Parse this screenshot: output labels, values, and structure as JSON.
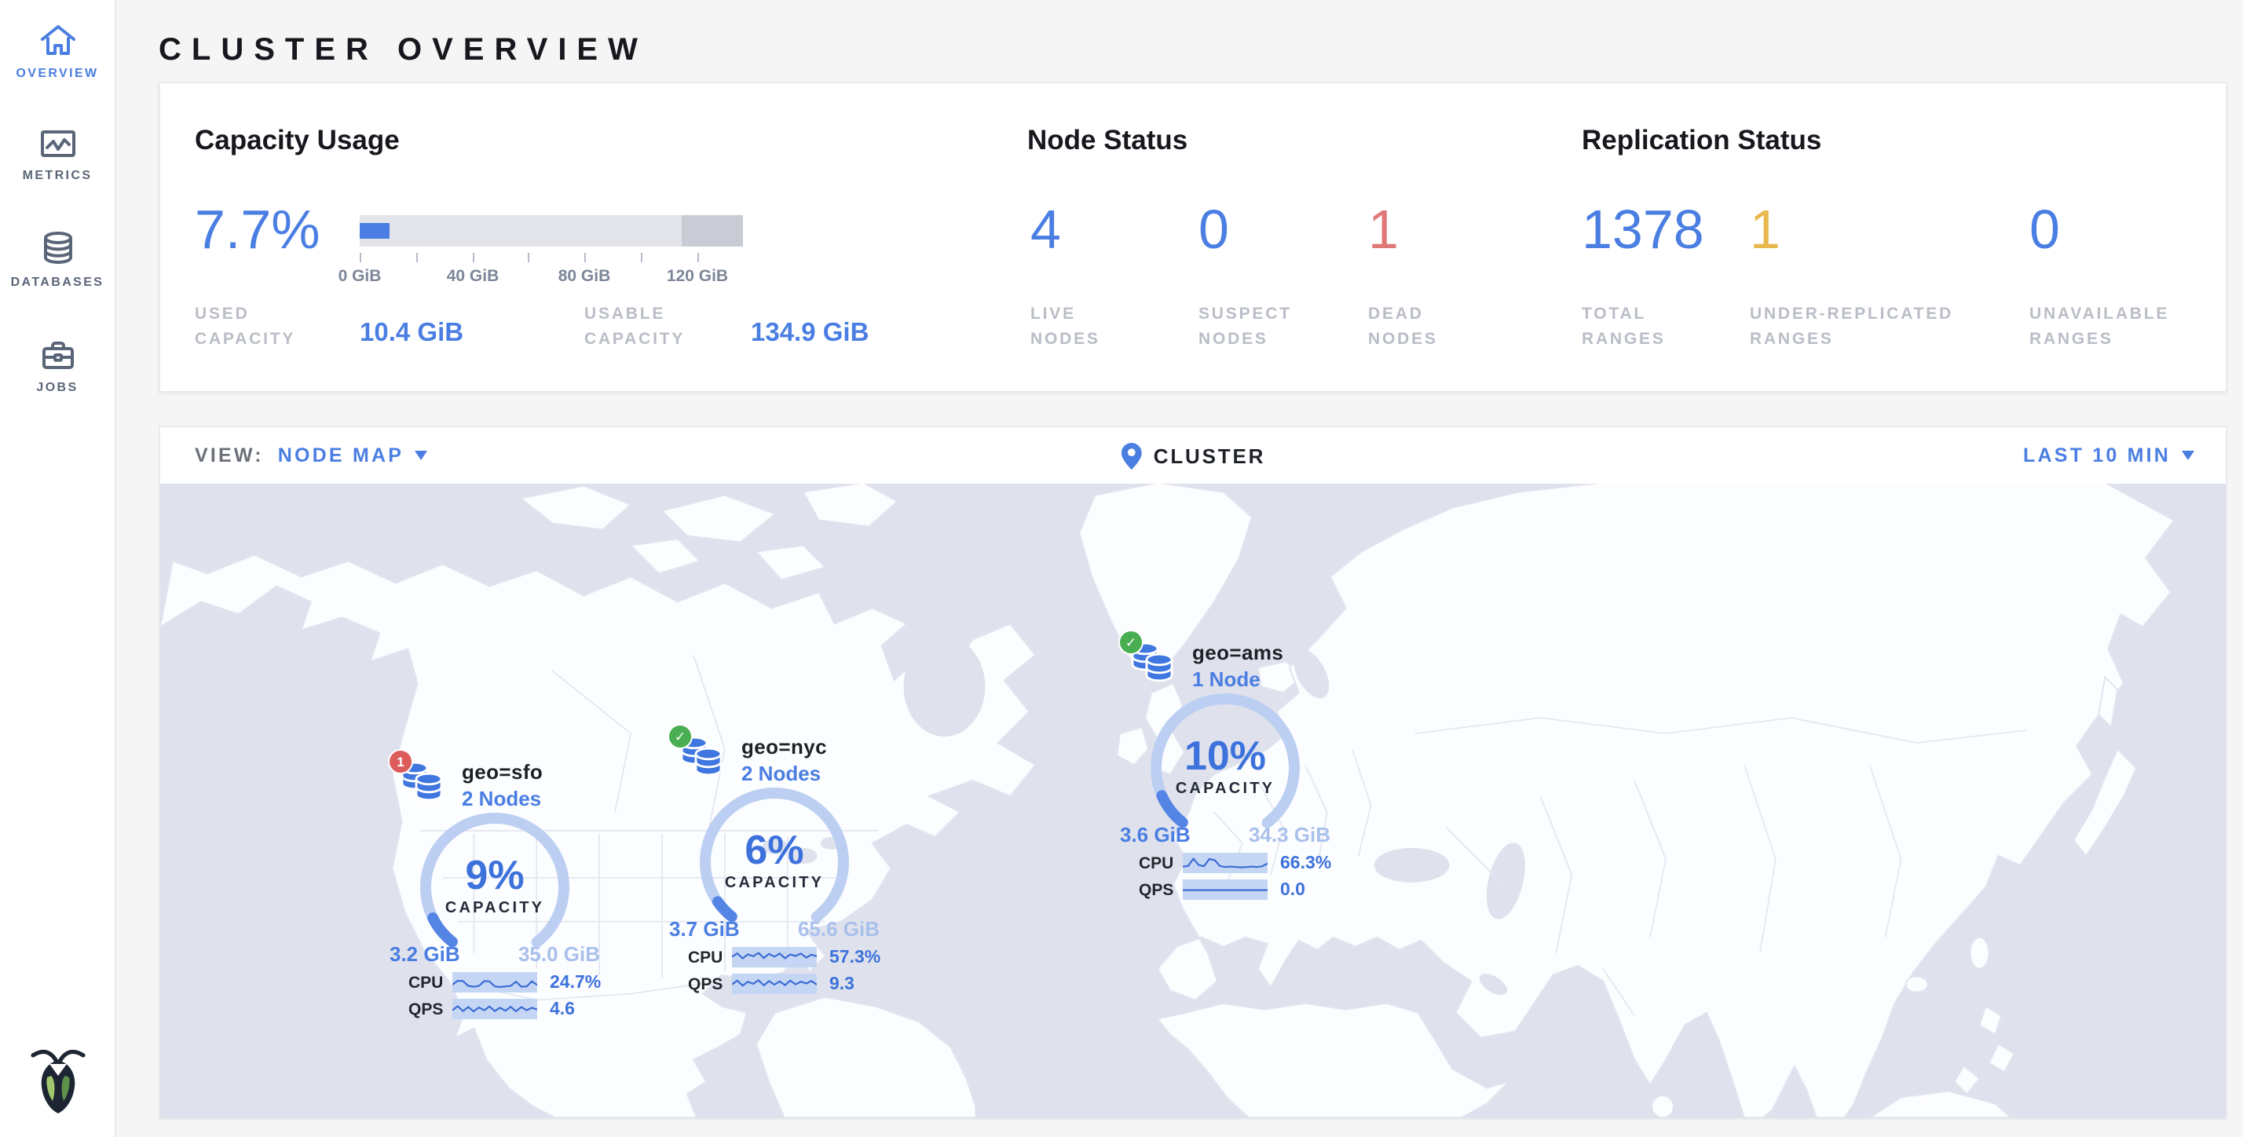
{
  "header": {
    "title": "CLUSTER OVERVIEW"
  },
  "sidebar": {
    "items": [
      {
        "label": "OVERVIEW",
        "icon": "home-icon",
        "active": true
      },
      {
        "label": "METRICS",
        "icon": "metrics-icon",
        "active": false
      },
      {
        "label": "DATABASES",
        "icon": "databases-icon",
        "active": false
      },
      {
        "label": "JOBS",
        "icon": "jobs-icon",
        "active": false
      }
    ],
    "logo": "cockroach-labs-logo"
  },
  "summary": {
    "capacity": {
      "title": "Capacity Usage",
      "percent": "7.7%",
      "used_pct": 7.7,
      "reserved_pct": 16,
      "ticks": [
        "0 GiB",
        "40 GiB",
        "80 GiB",
        "120 GiB"
      ],
      "used_label": "USED CAPACITY",
      "used_value": "10.4 GiB",
      "usable_label": "USABLE CAPACITY",
      "usable_value": "134.9 GiB"
    },
    "nodes": {
      "title": "Node Status",
      "stats": [
        {
          "value": "4",
          "label": "LIVE NODES",
          "color": "blue"
        },
        {
          "value": "0",
          "label": "SUSPECT NODES",
          "color": "blue"
        },
        {
          "value": "1",
          "label": "DEAD NODES",
          "color": "red"
        }
      ]
    },
    "replication": {
      "title": "Replication Status",
      "stats": [
        {
          "value": "1378",
          "label": "TOTAL RANGES",
          "color": "blue"
        },
        {
          "value": "1",
          "label": "UNDER-REPLICATED RANGES",
          "color": "yellow"
        },
        {
          "value": "0",
          "label": "UNAVAILABLE RANGES",
          "color": "blue"
        }
      ]
    }
  },
  "viewbar": {
    "view_label": "VIEW:",
    "view_value": "NODE MAP",
    "center_label": "CLUSTER",
    "time_range": "LAST 10 MIN"
  },
  "map": {
    "localities": [
      {
        "name": "geo=sfo",
        "nodes": "2 Nodes",
        "badge": "1",
        "badge_type": "dead",
        "capacity_pct": 9,
        "capacity_pct_label": "9%",
        "capacity_word": "CAPACITY",
        "used": "3.2 GiB",
        "total": "35.0 GiB",
        "cpu_label": "CPU",
        "cpu_value": "24.7%",
        "cpu_spark": [
          38,
          62,
          60,
          30,
          26,
          30,
          60,
          58,
          28,
          24,
          28,
          30,
          56,
          26,
          28,
          58,
          36
        ],
        "qps_label": "QPS",
        "qps_value": "4.6",
        "qps_spark": [
          45,
          70,
          40,
          65,
          38,
          62,
          45,
          68,
          40,
          60,
          42,
          66,
          38,
          64,
          45,
          60,
          50
        ]
      },
      {
        "name": "geo=nyc",
        "nodes": "2 Nodes",
        "badge": "✓",
        "badge_type": "healthy",
        "capacity_pct": 6,
        "capacity_pct_label": "6%",
        "capacity_word": "CAPACITY",
        "used": "3.7 GiB",
        "total": "65.6 GiB",
        "cpu_label": "CPU",
        "cpu_value": "57.3%",
        "cpu_spark": [
          55,
          75,
          45,
          70,
          58,
          78,
          48,
          72,
          55,
          74,
          46,
          70,
          60,
          74,
          50,
          68,
          58
        ],
        "qps_label": "QPS",
        "qps_value": "9.3",
        "qps_spark": [
          50,
          72,
          42,
          66,
          52,
          74,
          44,
          70,
          48,
          68,
          45,
          72,
          50,
          66,
          55,
          70,
          48
        ]
      },
      {
        "name": "geo=ams",
        "nodes": "1 Node",
        "badge": "✓",
        "badge_type": "healthy",
        "capacity_pct": 10,
        "capacity_pct_label": "10%",
        "capacity_word": "CAPACITY",
        "used": "3.6 GiB",
        "total": "34.3 GiB",
        "cpu_label": "CPU",
        "cpu_value": "66.3%",
        "cpu_spark": [
          30,
          34,
          78,
          40,
          32,
          76,
          70,
          34,
          28,
          30,
          28,
          26,
          28,
          30,
          28,
          32,
          50
        ],
        "qps_label": "QPS",
        "qps_value": "0.0",
        "qps_spark": [
          50,
          50,
          50,
          50,
          50,
          50,
          50,
          50,
          50,
          50,
          50,
          50,
          50,
          50,
          50,
          50,
          50
        ]
      }
    ]
  },
  "colors": {
    "accent": "#4a7ee2",
    "dead-red": "#e07878",
    "warn-yellow": "#e8b84e",
    "sea": "#dfe2ec",
    "arc-track": "#bccff2",
    "arc-fill": "#5585e4",
    "spark-line": "#3a6cd4"
  }
}
